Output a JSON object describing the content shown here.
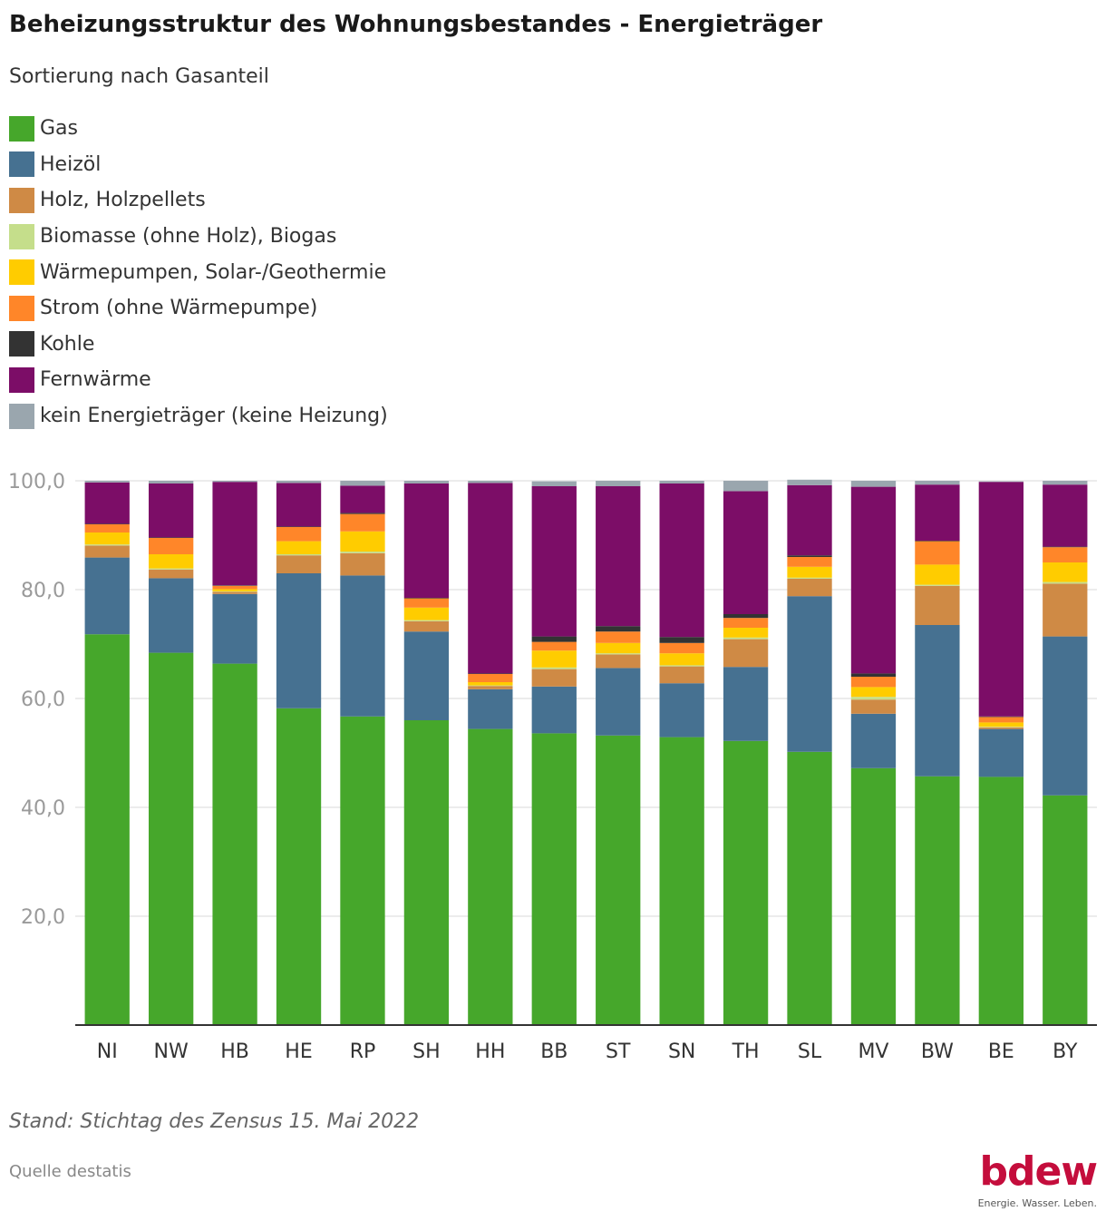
{
  "header": {
    "title": "Beheizungsstruktur des Wohnungsbestandes - Energieträger",
    "subtitle": "Sortierung nach Gasanteil"
  },
  "footer": {
    "note": "Stand: Stichtag des Zensus 15. Mai 2022",
    "source": "Quelle destatis"
  },
  "logo": {
    "wordmark": "bdew",
    "tagline": "Energie. Wasser. Leben."
  },
  "colors": {
    "gas": "#46a72b",
    "heizoel": "#467191",
    "holz": "#cf8a45",
    "biomasse": "#c5de8b",
    "waermepumpen": "#ffcc00",
    "strom": "#ff8629",
    "kohle": "#333333",
    "fernwaerme": "#7c0d67",
    "kein": "#9aa6ae",
    "brand": "#c40d3c"
  },
  "chart_data": {
    "type": "bar",
    "stacked": true,
    "categories": [
      "NI",
      "NW",
      "HB",
      "HE",
      "RP",
      "SH",
      "HH",
      "BB",
      "ST",
      "SN",
      "TH",
      "SL",
      "MV",
      "BW",
      "BE",
      "BY"
    ],
    "ylim": [
      0,
      100
    ],
    "yticks": [
      20,
      40,
      60,
      80,
      100
    ],
    "ytick_labels": [
      "20,0",
      "40,0",
      "60,0",
      "80,0",
      "100,0"
    ],
    "grid": true,
    "legend_position": "top-left",
    "series": [
      {
        "name": "Gas",
        "color": "#46a72b",
        "values": [
          71.8,
          68.4,
          66.4,
          58.2,
          56.7,
          56.0,
          54.4,
          53.6,
          53.2,
          52.9,
          52.2,
          50.2,
          47.2,
          45.7,
          45.6,
          42.2
        ]
      },
      {
        "name": "Heizöl",
        "color": "#467191",
        "values": [
          14.1,
          13.7,
          12.8,
          24.8,
          25.9,
          16.3,
          7.3,
          8.6,
          12.4,
          9.9,
          13.6,
          28.6,
          10.0,
          27.8,
          8.8,
          29.2
        ]
      },
      {
        "name": "Holz, Holzpellets",
        "color": "#cf8a45",
        "values": [
          2.2,
          1.6,
          0.4,
          3.3,
          4.1,
          1.9,
          0.6,
          3.2,
          2.5,
          3.1,
          5.1,
          3.2,
          2.6,
          7.2,
          0.3,
          9.7
        ]
      },
      {
        "name": "Biomasse (ohne Holz), Biogas",
        "color": "#c5de8b",
        "values": [
          0.2,
          0.2,
          0.1,
          0.2,
          0.3,
          0.2,
          0.1,
          0.3,
          0.2,
          0.2,
          0.3,
          0.2,
          0.5,
          0.2,
          0.1,
          0.3
        ]
      },
      {
        "name": "Wärmepumpen, Solar-/Geothermie",
        "color": "#ffcc00",
        "values": [
          2.2,
          2.6,
          0.4,
          2.4,
          3.7,
          2.3,
          0.6,
          3.1,
          1.9,
          2.2,
          1.8,
          2.0,
          1.8,
          3.7,
          0.8,
          3.6
        ]
      },
      {
        "name": "Strom (ohne Wärmepumpe)",
        "color": "#ff8629",
        "values": [
          1.5,
          3.0,
          0.6,
          2.6,
          3.2,
          1.7,
          1.5,
          1.6,
          2.1,
          1.9,
          1.8,
          1.8,
          1.9,
          4.3,
          1.0,
          2.8
        ]
      },
      {
        "name": "Kohle",
        "color": "#333333",
        "values": [
          0.1,
          0.1,
          0.1,
          0.1,
          0.2,
          0.1,
          0.1,
          1.0,
          1.0,
          1.1,
          0.7,
          0.3,
          0.6,
          0.1,
          0.1,
          0.1
        ]
      },
      {
        "name": "Fernwärme",
        "color": "#7c0d67",
        "values": [
          7.6,
          9.9,
          19.0,
          8.0,
          5.0,
          21.0,
          35.0,
          27.6,
          25.7,
          28.2,
          22.6,
          12.9,
          34.3,
          10.3,
          43.1,
          11.4
        ]
      },
      {
        "name": "kein Energieträger (keine Heizung)",
        "color": "#9aa6ae",
        "values": [
          0.3,
          0.5,
          0.2,
          0.4,
          0.9,
          0.5,
          0.4,
          0.9,
          1.0,
          0.5,
          1.9,
          1.0,
          1.1,
          0.7,
          0.1,
          0.7
        ]
      }
    ]
  }
}
